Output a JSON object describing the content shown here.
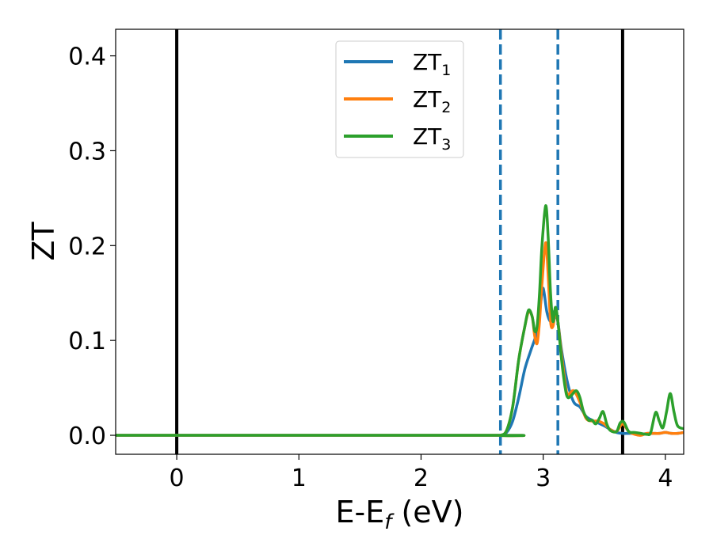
{
  "chart_data": {
    "type": "line",
    "xlabel": "E-E",
    "xlabel_sub": "f",
    "xlabel_unit": " (eV)",
    "ylabel": "ZT",
    "xlim": [
      -0.5,
      4.15
    ],
    "ylim": [
      -0.02,
      0.428
    ],
    "xticks": [
      0,
      1,
      2,
      3,
      4
    ],
    "yticks": [
      0.0,
      0.1,
      0.2,
      0.3,
      0.4
    ],
    "xtick_labels": [
      "0",
      "1",
      "2",
      "3",
      "4"
    ],
    "ytick_labels": [
      "0.0",
      "0.1",
      "0.2",
      "0.3",
      "0.4"
    ],
    "grid": false,
    "legend_position": "top-center",
    "vertical_lines": [
      {
        "x": 0.0,
        "style": "solid",
        "color": "#000000"
      },
      {
        "x": 3.65,
        "style": "solid",
        "color": "#000000"
      },
      {
        "x": 2.65,
        "style": "dashed",
        "color": "#1f77b4"
      },
      {
        "x": 3.12,
        "style": "dashed",
        "color": "#1f77b4"
      }
    ],
    "series": [
      {
        "name": "ZT",
        "name_sub": "1",
        "color": "#1f77b4",
        "x": [
          -0.5,
          2.6,
          2.65,
          2.7,
          2.75,
          2.8,
          2.85,
          2.9,
          2.95,
          2.98,
          3.0,
          3.03,
          3.06,
          3.08,
          3.1,
          3.12,
          3.15,
          3.2,
          3.25,
          3.3,
          3.35,
          3.4,
          3.45,
          3.5,
          3.55,
          3.6,
          3.65,
          3.7,
          3.75,
          3.8,
          3.85,
          3.9,
          3.95,
          4.0,
          4.05,
          4.1,
          4.15
        ],
        "y": [
          0.0,
          0.0,
          0.0,
          0.003,
          0.015,
          0.04,
          0.07,
          0.09,
          0.11,
          0.14,
          0.155,
          0.13,
          0.12,
          0.13,
          0.125,
          0.12,
          0.09,
          0.055,
          0.035,
          0.03,
          0.02,
          0.016,
          0.013,
          0.01,
          0.006,
          0.003,
          0.002,
          0.002,
          0.002,
          0.001,
          0.002,
          0.002,
          0.002,
          0.003,
          0.002,
          0.002,
          0.003
        ]
      },
      {
        "name": "ZT",
        "name_sub": "2",
        "color": "#ff7f0e",
        "x": [
          -0.5,
          2.6,
          2.65,
          2.7,
          2.75,
          2.8,
          2.85,
          2.88,
          2.91,
          2.93,
          2.95,
          2.97,
          2.99,
          3.02,
          3.04,
          3.06,
          3.08,
          3.1,
          3.12,
          3.15,
          3.18,
          3.2,
          3.25,
          3.3,
          3.35,
          3.4,
          3.45,
          3.5,
          3.55,
          3.6,
          3.65,
          3.7,
          3.75,
          3.8,
          3.85,
          3.9,
          3.95,
          4.0,
          4.05,
          4.1,
          4.15
        ],
        "y": [
          0.0,
          0.0,
          0.0,
          0.005,
          0.03,
          0.08,
          0.115,
          0.13,
          0.125,
          0.105,
          0.097,
          0.12,
          0.16,
          0.203,
          0.17,
          0.12,
          0.115,
          0.13,
          0.12,
          0.085,
          0.055,
          0.043,
          0.047,
          0.035,
          0.018,
          0.015,
          0.015,
          0.012,
          0.006,
          0.004,
          0.012,
          0.004,
          0.001,
          0.0,
          0.002,
          0.002,
          0.002,
          0.003,
          0.002,
          0.002,
          0.003
        ]
      },
      {
        "name": "ZT",
        "name_sub": "3",
        "color": "#2ca02c",
        "x": [
          -0.5,
          2.6,
          2.65,
          2.7,
          2.75,
          2.8,
          2.85,
          2.88,
          2.91,
          2.93,
          2.95,
          2.97,
          2.99,
          3.02,
          3.04,
          3.06,
          3.08,
          3.1,
          3.12,
          3.15,
          3.18,
          3.2,
          3.23,
          3.27,
          3.3,
          3.33,
          3.37,
          3.4,
          3.43,
          3.46,
          3.49,
          3.52,
          3.55,
          3.6,
          3.63,
          3.66,
          3.7,
          3.75,
          3.8,
          3.85,
          3.88,
          3.92,
          3.95,
          3.98,
          4.01,
          4.04,
          4.07,
          4.1,
          4.15
        ],
        "y": [
          0.0,
          0.0,
          0.0,
          0.005,
          0.03,
          0.08,
          0.115,
          0.132,
          0.125,
          0.11,
          0.115,
          0.15,
          0.2,
          0.242,
          0.21,
          0.15,
          0.12,
          0.135,
          0.12,
          0.08,
          0.05,
          0.04,
          0.042,
          0.047,
          0.04,
          0.025,
          0.016,
          0.016,
          0.012,
          0.018,
          0.025,
          0.012,
          0.005,
          0.004,
          0.013,
          0.014,
          0.004,
          0.003,
          0.002,
          0.001,
          0.003,
          0.024,
          0.015,
          0.008,
          0.025,
          0.044,
          0.025,
          0.01,
          0.007
        ]
      }
    ]
  }
}
